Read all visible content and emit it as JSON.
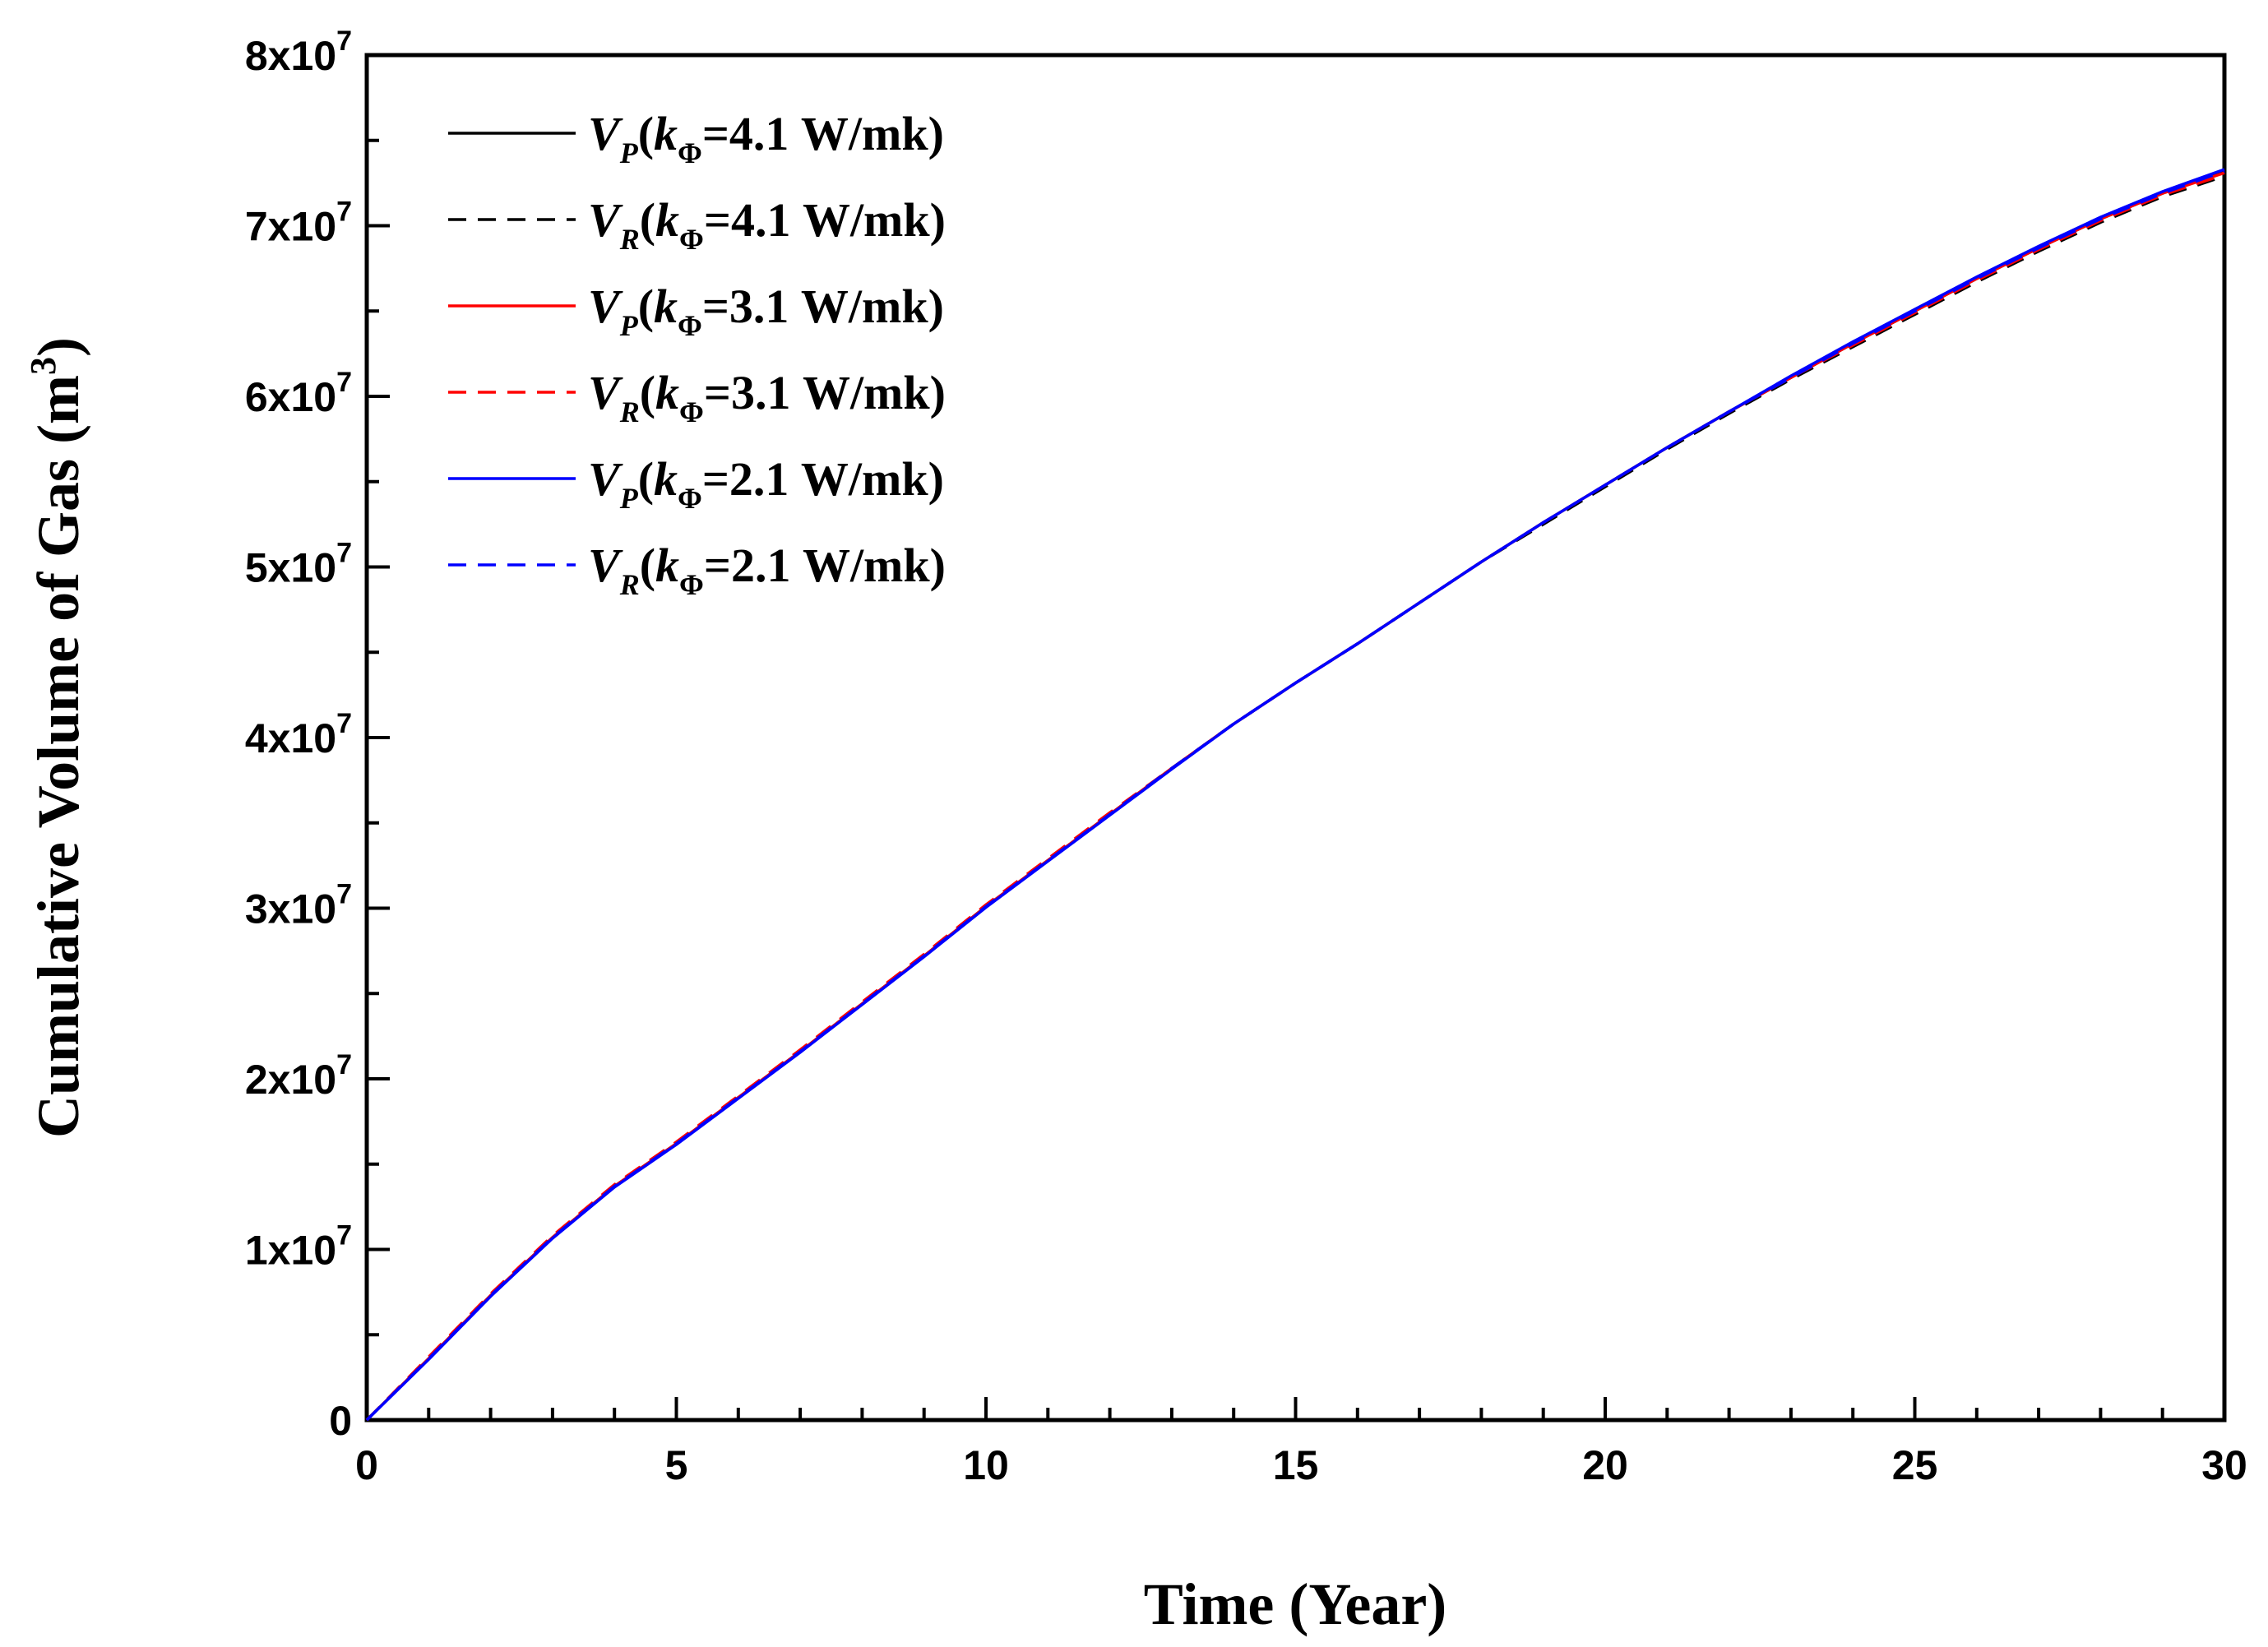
{
  "chart_data": {
    "type": "line",
    "xlabel": "Time (Year)",
    "ylabel": "Cumulative Volume of Gas (m",
    "ylabel_superscript": "3",
    "ylabel_close": ")",
    "xlim": [
      0,
      30
    ],
    "ylim": [
      0,
      80000000
    ],
    "x_ticks": [
      0,
      5,
      10,
      15,
      20,
      25,
      30
    ],
    "x_tick_labels": [
      "0",
      "5",
      "10",
      "15",
      "20",
      "25",
      "30"
    ],
    "y_ticks": [
      0,
      10000000,
      20000000,
      30000000,
      40000000,
      50000000,
      60000000,
      70000000,
      80000000
    ],
    "y_tick_labels": [
      {
        "base": "0",
        "exp": ""
      },
      {
        "base": "1x10",
        "exp": "7"
      },
      {
        "base": "2x10",
        "exp": "7"
      },
      {
        "base": "3x10",
        "exp": "7"
      },
      {
        "base": "4x10",
        "exp": "7"
      },
      {
        "base": "5x10",
        "exp": "7"
      },
      {
        "base": "6x10",
        "exp": "7"
      },
      {
        "base": "7x10",
        "exp": "7"
      },
      {
        "base": "8x10",
        "exp": "7"
      }
    ],
    "grid": false,
    "legend_position": "top-left",
    "x": [
      0,
      1,
      2,
      3,
      4,
      5,
      6,
      7,
      8,
      9,
      10,
      11,
      12,
      13,
      14,
      15,
      16,
      17,
      18,
      19,
      20,
      21,
      22,
      23,
      24,
      25,
      26,
      27,
      28,
      29,
      30
    ],
    "series": [
      {
        "name": "V_P(k_Φ=4.1 W/mk)",
        "sym": "V",
        "sub": "P",
        "k": "k",
        "kphi": "Φ",
        "value_text": "=4.1 W/mk)",
        "color": "#000000",
        "dash": "solid",
        "values": [
          0,
          3600000,
          7300000,
          10700000,
          13700000,
          16200000,
          18900000,
          21600000,
          24400000,
          27200000,
          30100000,
          32800000,
          35500000,
          38200000,
          40800000,
          43200000,
          45500000,
          47900000,
          50300000,
          52600000,
          54800000,
          57000000,
          59100000,
          61100000,
          63100000,
          65000000,
          66900000,
          68700000,
          70400000,
          71900000,
          73200000
        ]
      },
      {
        "name": "V_R(k_Φ=4.1 W/mk)",
        "sym": "V",
        "sub": "R",
        "k": "k",
        "kphi": "Φ",
        "value_text": "=4.1 W/mk)",
        "color": "#000000",
        "dash": "dashed",
        "values": [
          0,
          3650000,
          7350000,
          10750000,
          13750000,
          16250000,
          18950000,
          21650000,
          24450000,
          27250000,
          30100000,
          32800000,
          35500000,
          38200000,
          40800000,
          43200000,
          45500000,
          47900000,
          50300000,
          52500000,
          54700000,
          56900000,
          59000000,
          61000000,
          62900000,
          64800000,
          66700000,
          68500000,
          70200000,
          71700000,
          72900000
        ]
      },
      {
        "name": "V_P(k_Φ=3.1 W/mk)",
        "sym": "V",
        "sub": "P",
        "k": "k",
        "kphi": "Φ",
        "value_text": "=3.1 W/mk)",
        "color": "#ff0000",
        "dash": "solid",
        "values": [
          0,
          3600000,
          7300000,
          10700000,
          13700000,
          16200000,
          18900000,
          21600000,
          24400000,
          27200000,
          30100000,
          32800000,
          35500000,
          38200000,
          40800000,
          43200000,
          45500000,
          47900000,
          50300000,
          52600000,
          54800000,
          57000000,
          59100000,
          61100000,
          63100000,
          65000000,
          66900000,
          68700000,
          70400000,
          71900000,
          73100000
        ]
      },
      {
        "name": "V_R(k_Φ=3.1 W/mk)",
        "sym": "V",
        "sub": "R",
        "k": "k",
        "kphi": "Φ",
        "value_text": "=3.1 W/mk)",
        "color": "#ff0000",
        "dash": "dashed",
        "values": [
          0,
          3700000,
          7400000,
          10800000,
          13800000,
          16300000,
          19000000,
          21700000,
          24500000,
          27300000,
          30200000,
          32900000,
          35600000,
          38200000,
          40800000,
          43200000,
          45500000,
          47900000,
          50300000,
          52600000,
          54800000,
          57000000,
          59100000,
          61100000,
          63000000,
          64900000,
          66800000,
          68600000,
          70300000,
          71800000,
          73000000
        ]
      },
      {
        "name": "V_P(k_Φ=2.1 W/mk)",
        "sym": "V",
        "sub": "P",
        "k": "k",
        "kphi": "Φ",
        "value_text": "=2.1 W/mk)",
        "color": "#0000ff",
        "dash": "solid",
        "values": [
          0,
          3550000,
          7250000,
          10650000,
          13650000,
          16150000,
          18850000,
          21550000,
          24350000,
          27150000,
          30050000,
          32750000,
          35450000,
          38150000,
          40800000,
          43200000,
          45500000,
          47900000,
          50300000,
          52600000,
          54800000,
          57000000,
          59100000,
          61200000,
          63200000,
          65100000,
          67000000,
          68800000,
          70500000,
          72000000,
          73300000
        ]
      },
      {
        "name": "V_R(k_Φ=2.1 W/mk)",
        "sym": "V",
        "sub": "R",
        "k": "k",
        "kphi": "Φ",
        "value_text": "=2.1 W/mk)",
        "color": "#0000ff",
        "dash": "dashed",
        "values": [
          0,
          3600000,
          7300000,
          10700000,
          13700000,
          16200000,
          18900000,
          21600000,
          24400000,
          27200000,
          30100000,
          32800000,
          35500000,
          38200000,
          40800000,
          43200000,
          45500000,
          47900000,
          50300000,
          52600000,
          54800000,
          57000000,
          59100000,
          61100000,
          63100000,
          65000000,
          66900000,
          68700000,
          70400000,
          71900000,
          73200000
        ]
      }
    ]
  }
}
